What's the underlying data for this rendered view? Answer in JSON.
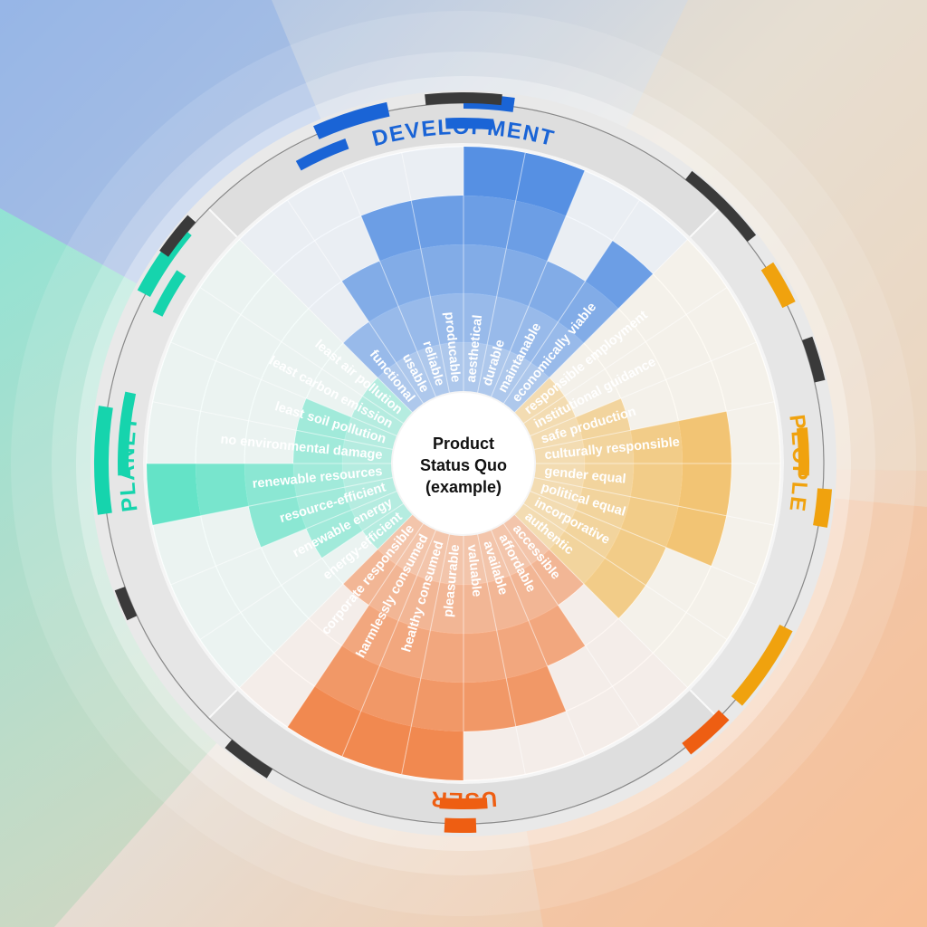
{
  "center_title": [
    "Product",
    "Status Quo",
    "(example)"
  ],
  "dimensions": [
    {
      "key": "development",
      "title": "DEVELOPMENT",
      "color": "#1a64d6",
      "fill": "#3f82e0"
    },
    {
      "key": "people",
      "title": "PEOPLE",
      "color": "#f0a20e",
      "fill": "#f1b44a"
    },
    {
      "key": "user",
      "title": "USER",
      "color": "#ee5e12",
      "fill": "#f07a3a"
    },
    {
      "key": "planet",
      "title": "PLANET",
      "color": "#16d4ad",
      "fill": "#4fe0c0"
    }
  ],
  "chart_data": {
    "type": "radial-bar",
    "title": "Product Status Quo (example)",
    "scale_max": 5,
    "groups": [
      {
        "name": "DEVELOPMENT",
        "items": [
          {
            "label": "functional",
            "value": 2
          },
          {
            "label": "usable",
            "value": 3
          },
          {
            "label": "reliable",
            "value": 4
          },
          {
            "label": "producable",
            "value": 4
          },
          {
            "label": "aesthetical",
            "value": 5
          },
          {
            "label": "durable",
            "value": 5
          },
          {
            "label": "maintanable",
            "value": 3
          },
          {
            "label": "economically viable",
            "value": 4
          }
        ]
      },
      {
        "name": "PEOPLE",
        "items": [
          {
            "label": "responsible employment",
            "value": 1
          },
          {
            "label": "institutional guidance",
            "value": 1
          },
          {
            "label": "safe production",
            "value": 2
          },
          {
            "label": "culturally responsible",
            "value": 4
          },
          {
            "label": "gender equal",
            "value": 4
          },
          {
            "label": "political equal",
            "value": 4
          },
          {
            "label": "incorporative",
            "value": 3
          },
          {
            "label": "authentic",
            "value": 3
          }
        ]
      },
      {
        "name": "USER",
        "items": [
          {
            "label": "accessible",
            "value": 2
          },
          {
            "label": "affordable",
            "value": 3
          },
          {
            "label": "available",
            "value": 4
          },
          {
            "label": "valuable",
            "value": 4
          },
          {
            "label": "pleasurable",
            "value": 5
          },
          {
            "label": "healthy consumed",
            "value": 5
          },
          {
            "label": "harmlessly consumed",
            "value": 5
          },
          {
            "label": "corporate responsible",
            "value": 2
          }
        ]
      },
      {
        "name": "PLANET",
        "items": [
          {
            "label": "energy-efficient",
            "value": 1
          },
          {
            "label": "renewable energy",
            "value": 2
          },
          {
            "label": "resource-efficient",
            "value": 3
          },
          {
            "label": "renewable resources",
            "value": 5
          },
          {
            "label": "no environmental damage",
            "value": 2
          },
          {
            "label": "least soil pollution",
            "value": 2
          },
          {
            "label": "least carbon emission",
            "value": 1
          },
          {
            "label": "least air pollution",
            "value": 1
          }
        ]
      }
    ]
  }
}
